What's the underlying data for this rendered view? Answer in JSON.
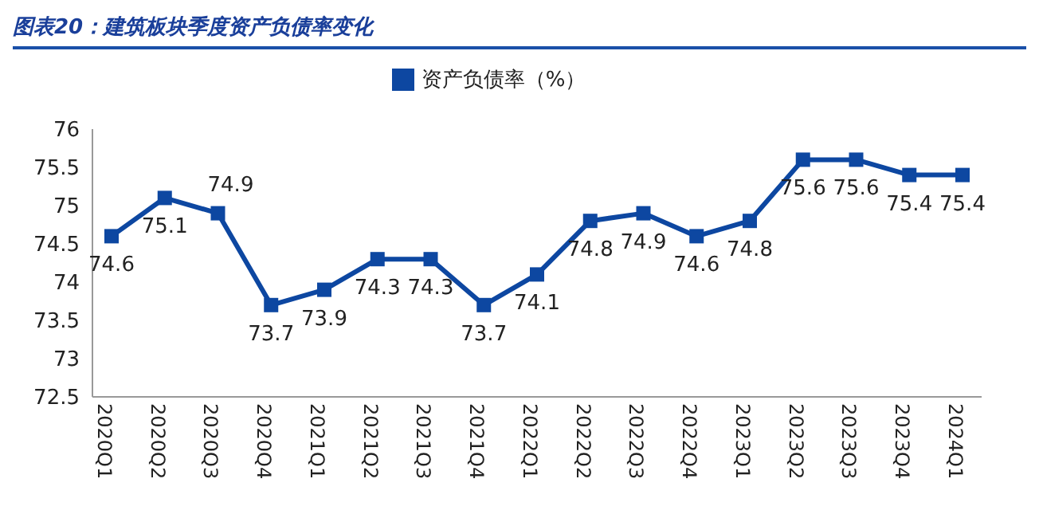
{
  "chart_data": {
    "type": "line",
    "title": "图表20：建筑板块季度资产负债率变化",
    "categories": [
      "2020Q1",
      "2020Q2",
      "2020Q3",
      "2020Q4",
      "2021Q1",
      "2021Q2",
      "2021Q3",
      "2021Q4",
      "2022Q1",
      "2022Q2",
      "2022Q3",
      "2022Q4",
      "2023Q1",
      "2023Q2",
      "2023Q3",
      "2023Q4",
      "2024Q1"
    ],
    "series": [
      {
        "name": "资产负债率（%）",
        "color": "#0d47a1",
        "values": [
          74.6,
          75.1,
          74.9,
          73.7,
          73.9,
          74.3,
          74.3,
          73.7,
          74.1,
          74.8,
          74.9,
          74.6,
          74.8,
          75.6,
          75.6,
          75.4,
          75.4
        ]
      }
    ],
    "ylim": [
      72.5,
      76
    ],
    "yticks": [
      72.5,
      73,
      73.5,
      74,
      74.5,
      75,
      75.5,
      76
    ],
    "legend": "top",
    "marker": "square",
    "line_style": "solid",
    "data_labels": true
  }
}
